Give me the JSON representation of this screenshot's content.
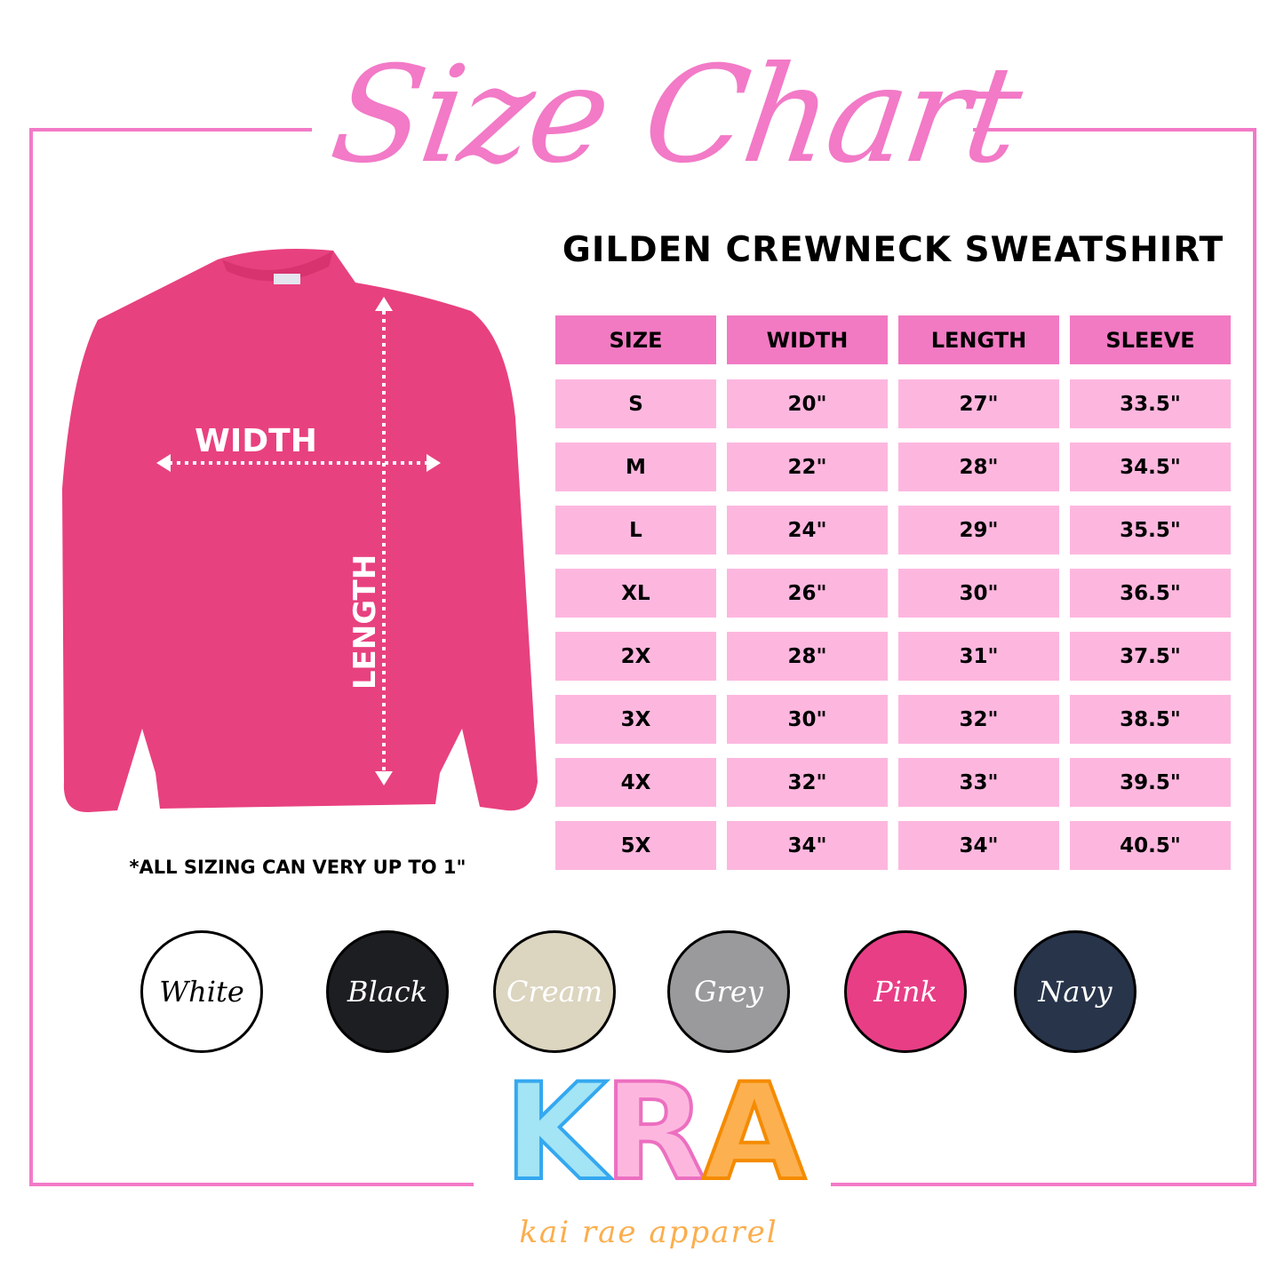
{
  "title": "Size Chart",
  "subtitle": "GILDEN CREWNECK SWEATSHIRT",
  "colors": {
    "accent": "#f27ac7",
    "header": "#f27ac3",
    "row": "#fdb7df",
    "shirt": "#e8417f"
  },
  "diagram": {
    "width_label": "WIDTH",
    "length_label": "LENGTH"
  },
  "table": {
    "headers": [
      "SIZE",
      "WIDTH",
      "LENGTH",
      "SLEEVE"
    ],
    "rows": [
      [
        "S",
        "20\"",
        "27\"",
        "33.5\""
      ],
      [
        "M",
        "22\"",
        "28\"",
        "34.5\""
      ],
      [
        "L",
        "24\"",
        "29\"",
        "35.5\""
      ],
      [
        "XL",
        "26\"",
        "30\"",
        "36.5\""
      ],
      [
        "2X",
        "28\"",
        "31\"",
        "37.5\""
      ],
      [
        "3X",
        "30\"",
        "32\"",
        "38.5\""
      ],
      [
        "4X",
        "32\"",
        "33\"",
        "39.5\""
      ],
      [
        "5X",
        "34\"",
        "34\"",
        "40.5\""
      ]
    ]
  },
  "note": "*ALL SIZING CAN VERY UP TO 1\"",
  "swatches": [
    {
      "label": "White",
      "color": "#ffffff",
      "text": "#000000"
    },
    {
      "label": "Black",
      "color": "#1d1e22",
      "text": "#ffffff"
    },
    {
      "label": "Cream",
      "color": "#dcd5bf",
      "text": "#ffffff"
    },
    {
      "label": "Grey",
      "color": "#9a9a9c",
      "text": "#ffffff"
    },
    {
      "label": "Pink",
      "color": "#e83e86",
      "text": "#ffffff"
    },
    {
      "label": "Navy",
      "color": "#27344a",
      "text": "#ffffff"
    }
  ],
  "logo": {
    "letters": [
      "K",
      "R",
      "A"
    ],
    "tagline": "kai rae apparel"
  }
}
